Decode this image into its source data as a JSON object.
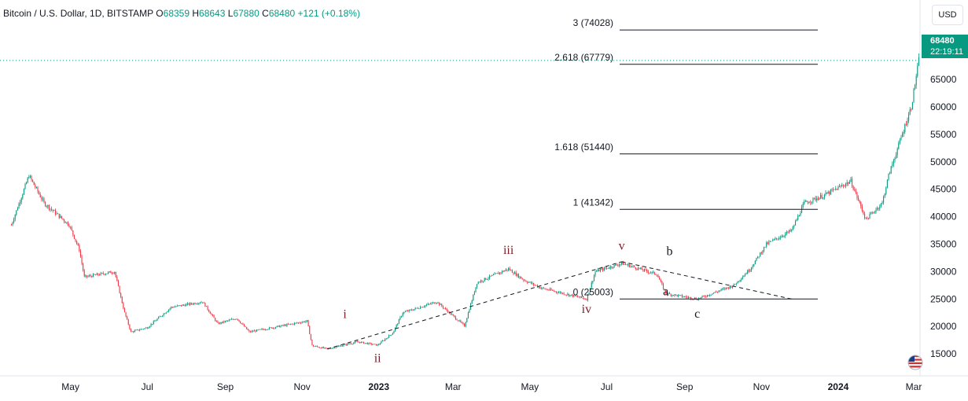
{
  "header": {
    "symbol": "Bitcoin / U.S. Dollar, 1D, BITSTAMP",
    "open_label": "O",
    "open": "68359",
    "high_label": "H",
    "high": "68643",
    "low_label": "L",
    "low": "67880",
    "close_label": "C",
    "close": "68480",
    "change": "+121 (+0.18%)"
  },
  "currency_button": "USD",
  "last_price": {
    "price": "68480",
    "countdown": "22:19:11"
  },
  "colors": {
    "up": "#089981",
    "down": "#f23645",
    "wave": "#7b1f2b",
    "accent": "#089981"
  },
  "chart_data": {
    "type": "candlestick",
    "y_ticks": [
      15000,
      20000,
      25000,
      30000,
      35000,
      40000,
      45000,
      50000,
      55000,
      60000,
      65000
    ],
    "ylim": [
      11000,
      79500
    ],
    "x_ticks": [
      "May",
      "Jul",
      "Sep",
      "Nov",
      "2023",
      "Mar",
      "May",
      "Jul",
      "Sep",
      "Nov",
      "2024",
      "Mar"
    ],
    "x_tick_dates": [
      "2022-05-01",
      "2022-07-01",
      "2022-09-01",
      "2022-11-01",
      "2023-01-01",
      "2023-03-01",
      "2023-05-01",
      "2023-07-01",
      "2023-09-01",
      "2023-11-01",
      "2024-01-01",
      "2024-03-01"
    ],
    "price_path": [
      [
        "2022-03-15",
        38500
      ],
      [
        "2022-03-29",
        47500
      ],
      [
        "2022-04-10",
        42500
      ],
      [
        "2022-04-30",
        38500
      ],
      [
        "2022-05-08",
        34000
      ],
      [
        "2022-05-12",
        29000
      ],
      [
        "2022-06-05",
        30000
      ],
      [
        "2022-06-13",
        22500
      ],
      [
        "2022-06-18",
        19000
      ],
      [
        "2022-07-01",
        19800
      ],
      [
        "2022-07-20",
        23500
      ],
      [
        "2022-08-14",
        24500
      ],
      [
        "2022-08-26",
        20500
      ],
      [
        "2022-09-10",
        21500
      ],
      [
        "2022-09-20",
        19000
      ],
      [
        "2022-10-25",
        20500
      ],
      [
        "2022-11-05",
        21000
      ],
      [
        "2022-11-09",
        16500
      ],
      [
        "2022-11-21",
        15900
      ],
      [
        "2022-12-15",
        17200
      ],
      [
        "2022-12-31",
        16600
      ],
      [
        "2023-01-12",
        18800
      ],
      [
        "2023-01-20",
        22500
      ],
      [
        "2023-02-16",
        24500
      ],
      [
        "2023-03-10",
        20100
      ],
      [
        "2023-03-20",
        28000
      ],
      [
        "2023-04-14",
        30500
      ],
      [
        "2023-04-26",
        28500
      ],
      [
        "2023-05-10",
        27000
      ],
      [
        "2023-06-15",
        25000
      ],
      [
        "2023-06-22",
        30000
      ],
      [
        "2023-07-13",
        31500
      ],
      [
        "2023-08-10",
        29500
      ],
      [
        "2023-08-17",
        26000
      ],
      [
        "2023-09-11",
        25000
      ],
      [
        "2023-10-10",
        27500
      ],
      [
        "2023-10-23",
        30500
      ],
      [
        "2023-11-05",
        35000
      ],
      [
        "2023-11-25",
        37500
      ],
      [
        "2023-12-05",
        42500
      ],
      [
        "2023-12-20",
        43800
      ],
      [
        "2024-01-11",
        46500
      ],
      [
        "2024-01-23",
        39500
      ],
      [
        "2024-02-05",
        42500
      ],
      [
        "2024-02-10",
        47500
      ],
      [
        "2024-02-28",
        60000
      ],
      [
        "2024-03-05",
        68480
      ]
    ],
    "fib_levels": [
      {
        "label": "2.618 (67779)",
        "value": 67779
      },
      {
        "label": "1.618 (51440)",
        "value": 51440
      },
      {
        "label": "1 (41342)",
        "value": 41342
      },
      {
        "label": "0 (25003)",
        "value": 25003
      }
    ],
    "fib_top_label": "3 (74028)",
    "fib_top_value": 74028,
    "trendlines": [
      {
        "points": [
          [
            "2022-11-21",
            15900
          ],
          [
            "2023-07-13",
            31800
          ]
        ]
      },
      {
        "points": [
          [
            "2023-07-13",
            31800
          ],
          [
            "2023-11-25",
            25000
          ]
        ]
      }
    ],
    "wave_labels": [
      {
        "text": "i",
        "date": "2022-12-05",
        "value": 21500,
        "color": "wave"
      },
      {
        "text": "ii",
        "date": "2022-12-31",
        "value": 13500,
        "color": "wave"
      },
      {
        "text": "iii",
        "date": "2023-04-14",
        "value": 33200,
        "color": "wave"
      },
      {
        "text": "iv",
        "date": "2023-06-15",
        "value": 22500,
        "color": "wave"
      },
      {
        "text": "v",
        "date": "2023-07-13",
        "value": 34000,
        "color": "wave"
      },
      {
        "text": "a",
        "date": "2023-08-17",
        "value": 25700,
        "color": "black"
      },
      {
        "text": "b",
        "date": "2023-08-20",
        "value": 33000,
        "color": "black"
      },
      {
        "text": "c",
        "date": "2023-09-11",
        "value": 21600,
        "color": "black"
      }
    ]
  }
}
